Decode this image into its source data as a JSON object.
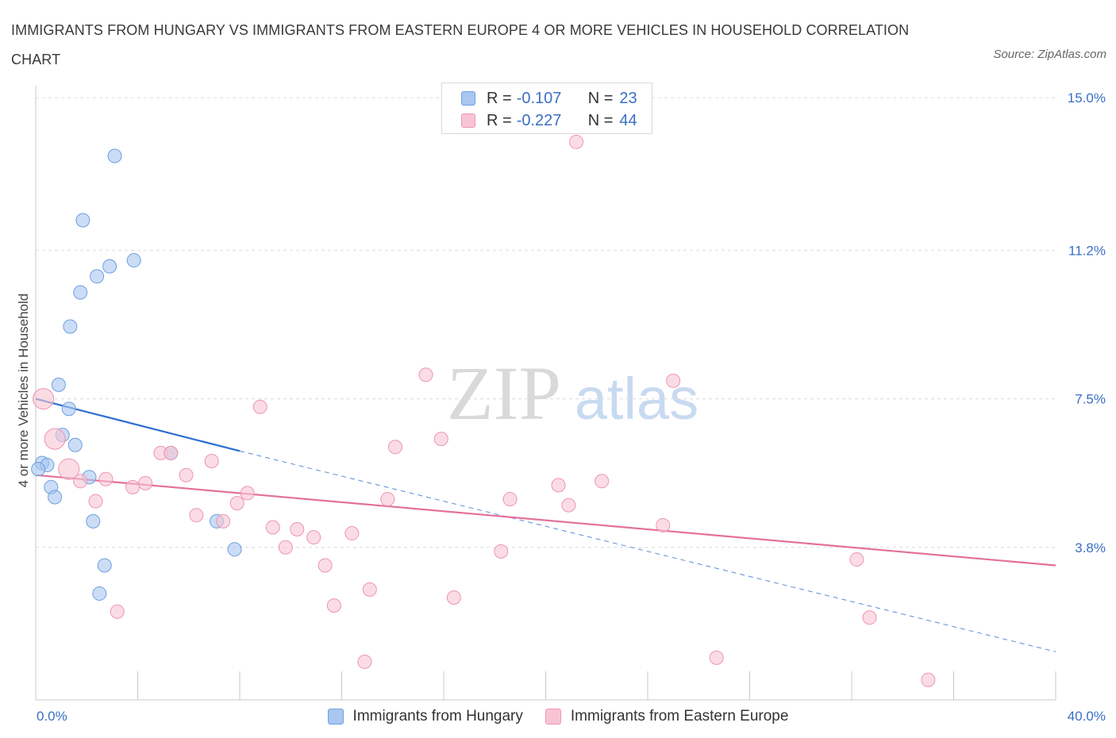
{
  "title": "IMMIGRANTS FROM HUNGARY VS IMMIGRANTS FROM EASTERN EUROPE 4 OR MORE VEHICLES IN HOUSEHOLD CORRELATION CHART",
  "source": "Source: ZipAtlas.com",
  "watermark": {
    "zip": "ZIP",
    "atlas": "atlas"
  },
  "legend": {
    "rows": [
      {
        "r_label": "R =",
        "r_value": "-0.107",
        "n_label": "N =",
        "n_value": "23",
        "color": "#a9c7f0",
        "border": "#6f9fde"
      },
      {
        "r_label": "R =",
        "r_value": "-0.227",
        "n_label": "N =",
        "n_value": "44",
        "color": "#f8c4d3",
        "border": "#ec96b1"
      }
    ]
  },
  "bottom_legend": {
    "items": [
      {
        "label": "Immigrants from Hungary",
        "color": "#a9c7f0",
        "border": "#6f9fde"
      },
      {
        "label": "Immigrants from Eastern Europe",
        "color": "#f8c4d3",
        "border": "#ec96b1"
      }
    ]
  },
  "chart_data": {
    "type": "scatter",
    "xlabel": "",
    "ylabel": "4 or more Vehicles in Household",
    "xlim": [
      0,
      40
    ],
    "ylim": [
      0,
      15.3
    ],
    "x_tick_labels": [
      "0.0%",
      "40.0%"
    ],
    "y_ticks": [
      {
        "value": 3.8,
        "label": "3.8%"
      },
      {
        "value": 7.5,
        "label": "7.5%"
      },
      {
        "value": 11.2,
        "label": "11.2%"
      },
      {
        "value": 15.0,
        "label": "15.0%"
      }
    ],
    "grid": true,
    "legend_position": "top-center",
    "series": [
      {
        "name": "Immigrants from Hungary",
        "color": "#a9c7f0",
        "stroke": "#6f9fde",
        "line_color": "#2f6fd0",
        "points": [
          {
            "x": 3.1,
            "y": 13.55
          },
          {
            "x": 1.85,
            "y": 11.95
          },
          {
            "x": 3.85,
            "y": 10.95
          },
          {
            "x": 2.9,
            "y": 10.8
          },
          {
            "x": 2.4,
            "y": 10.55
          },
          {
            "x": 1.75,
            "y": 10.15
          },
          {
            "x": 1.35,
            "y": 9.3
          },
          {
            "x": 0.9,
            "y": 7.85
          },
          {
            "x": 1.3,
            "y": 7.25
          },
          {
            "x": 1.05,
            "y": 6.6
          },
          {
            "x": 1.55,
            "y": 6.35
          },
          {
            "x": 0.25,
            "y": 5.9
          },
          {
            "x": 0.45,
            "y": 5.85
          },
          {
            "x": 0.1,
            "y": 5.75
          },
          {
            "x": 2.1,
            "y": 5.55
          },
          {
            "x": 0.6,
            "y": 5.3
          },
          {
            "x": 0.75,
            "y": 5.05
          },
          {
            "x": 5.3,
            "y": 6.15
          },
          {
            "x": 2.25,
            "y": 4.45
          },
          {
            "x": 7.1,
            "y": 4.45
          },
          {
            "x": 7.8,
            "y": 3.75
          },
          {
            "x": 2.7,
            "y": 3.35
          },
          {
            "x": 2.5,
            "y": 2.65
          }
        ],
        "trend": {
          "x1": 0,
          "y1": 7.5,
          "x2": 8.0,
          "y2": 6.2,
          "x2_dashed": 40,
          "y2_dashed": 1.2
        }
      },
      {
        "name": "Immigrants from Eastern Europe",
        "color": "#f8c4d3",
        "stroke": "#ec96b1",
        "line_color": "#e4709a",
        "points": [
          {
            "x": 21.2,
            "y": 13.9
          },
          {
            "x": 0.3,
            "y": 7.5,
            "big": true
          },
          {
            "x": 15.3,
            "y": 8.1
          },
          {
            "x": 25.0,
            "y": 7.95
          },
          {
            "x": 8.8,
            "y": 7.3
          },
          {
            "x": 0.75,
            "y": 6.5,
            "big": true
          },
          {
            "x": 15.9,
            "y": 6.5
          },
          {
            "x": 14.1,
            "y": 6.3
          },
          {
            "x": 4.9,
            "y": 6.15
          },
          {
            "x": 5.3,
            "y": 6.15
          },
          {
            "x": 6.9,
            "y": 5.95
          },
          {
            "x": 1.3,
            "y": 5.75,
            "big": true
          },
          {
            "x": 5.9,
            "y": 5.6
          },
          {
            "x": 1.75,
            "y": 5.45
          },
          {
            "x": 2.75,
            "y": 5.5
          },
          {
            "x": 4.3,
            "y": 5.4
          },
          {
            "x": 3.8,
            "y": 5.3
          },
          {
            "x": 20.5,
            "y": 5.35
          },
          {
            "x": 22.2,
            "y": 5.45
          },
          {
            "x": 8.3,
            "y": 5.15
          },
          {
            "x": 13.8,
            "y": 5.0
          },
          {
            "x": 18.6,
            "y": 5.0
          },
          {
            "x": 2.35,
            "y": 4.95
          },
          {
            "x": 7.9,
            "y": 4.9
          },
          {
            "x": 20.9,
            "y": 4.85
          },
          {
            "x": 6.3,
            "y": 4.6
          },
          {
            "x": 7.35,
            "y": 4.45
          },
          {
            "x": 24.6,
            "y": 4.35
          },
          {
            "x": 9.3,
            "y": 4.3
          },
          {
            "x": 10.25,
            "y": 4.25
          },
          {
            "x": 12.4,
            "y": 4.15
          },
          {
            "x": 10.9,
            "y": 4.05
          },
          {
            "x": 9.8,
            "y": 3.8
          },
          {
            "x": 18.25,
            "y": 3.7
          },
          {
            "x": 32.2,
            "y": 3.5
          },
          {
            "x": 11.35,
            "y": 3.35
          },
          {
            "x": 13.1,
            "y": 2.75
          },
          {
            "x": 16.4,
            "y": 2.55
          },
          {
            "x": 11.7,
            "y": 2.35
          },
          {
            "x": 3.2,
            "y": 2.2
          },
          {
            "x": 32.7,
            "y": 2.05
          },
          {
            "x": 12.9,
            "y": 0.95
          },
          {
            "x": 26.7,
            "y": 1.05
          },
          {
            "x": 35.0,
            "y": 0.5
          }
        ],
        "trend": {
          "x1": 0,
          "y1": 5.6,
          "x2": 40,
          "y2": 3.35
        }
      }
    ]
  }
}
